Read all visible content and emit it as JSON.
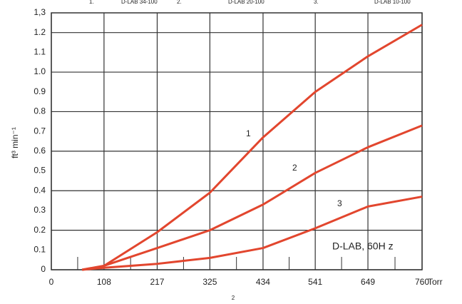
{
  "chart_data": {
    "type": "line",
    "legend_labels": [
      "1.",
      "2.",
      "3."
    ],
    "x": [
      63,
      108,
      217,
      325,
      434,
      541,
      649,
      760
    ],
    "series": [
      {
        "name": "D-LAB 34-100",
        "color": "#e2462e",
        "values": [
          0,
          0.02,
          0.19,
          0.39,
          0.67,
          0.9,
          1.08,
          1.24
        ]
      },
      {
        "name": "D-LAB 20-100",
        "color": "#e2462e",
        "values": [
          0,
          0.02,
          0.11,
          0.2,
          0.33,
          0.49,
          0.62,
          0.73
        ]
      },
      {
        "name": "D-LAB 10-100",
        "color": "#e2462e",
        "values": [
          0,
          0.01,
          0.03,
          0.06,
          0.11,
          0.21,
          0.32,
          0.37
        ]
      }
    ],
    "curve_labels": [
      "1",
      "2",
      "3"
    ],
    "annotation": "D-LAB, 60H  z",
    "x_label": "Torr",
    "y_label": "ft³ min⁻¹",
    "footnote": "2",
    "xlim": [
      0,
      760
    ],
    "xticks": [
      0,
      108,
      217,
      325,
      434,
      541,
      649,
      760
    ],
    "ylim": [
      0,
      1.3
    ],
    "yticks": [
      0,
      0.1,
      0.2,
      0.3,
      0.4,
      0.5,
      0.6,
      0.7,
      0.8,
      0.9,
      {
        "value": 1.0,
        "label": "1.0"
      },
      1.1,
      1.2,
      {
        "value": 1.3,
        "label": "1,3"
      }
    ],
    "grid": true
  }
}
